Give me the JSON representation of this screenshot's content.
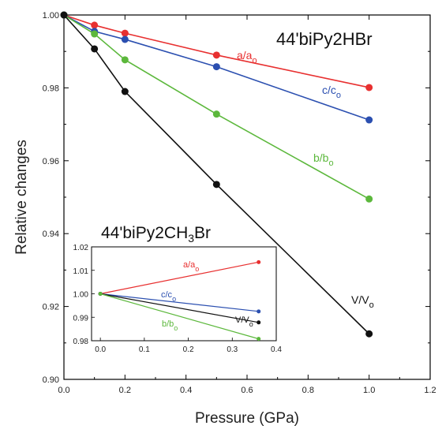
{
  "chart_data": [
    {
      "type": "line",
      "title": "44'biPy2HBr",
      "xlabel": "Pressure (GPa)",
      "ylabel": "Relative changes",
      "xlim": [
        0,
        1.2
      ],
      "ylim": [
        0.9,
        1.0
      ],
      "x_ticks": [
        "0.0",
        "0.2",
        "0.4",
        "0.6",
        "0.8",
        "1.0",
        "1.2"
      ],
      "y_ticks": [
        "0.90",
        "0.92",
        "0.94",
        "0.96",
        "0.98",
        "1.00"
      ],
      "grid": false,
      "series": [
        {
          "name": "a/a",
          "subscript": "o",
          "color": "#e83030",
          "x": [
            0,
            0.1,
            0.2,
            0.5,
            1.0
          ],
          "y": [
            1.0,
            0.9972,
            0.995,
            0.989,
            0.9801
          ]
        },
        {
          "name": "c/c",
          "subscript": "o",
          "color": "#2b4fb0",
          "x": [
            0,
            0.1,
            0.2,
            0.5,
            1.0
          ],
          "y": [
            1.0,
            0.9955,
            0.9933,
            0.9858,
            0.9712
          ]
        },
        {
          "name": "b/b",
          "subscript": "o",
          "color": "#5cb83c",
          "x": [
            0,
            0.1,
            0.2,
            0.5,
            1.0
          ],
          "y": [
            1.0,
            0.9948,
            0.9877,
            0.9728,
            0.9495
          ]
        },
        {
          "name": "V/V",
          "subscript": "o",
          "color": "#111111",
          "x": [
            0,
            0.1,
            0.2,
            0.5,
            1.0
          ],
          "y": [
            1.0,
            0.9907,
            0.979,
            0.9535,
            0.9125
          ]
        }
      ]
    },
    {
      "type": "line",
      "title_parts": [
        "44'biPy2CH",
        "3",
        "Br"
      ],
      "xlim": [
        -0.02,
        0.4
      ],
      "ylim": [
        0.98,
        1.02
      ],
      "x_ticks": [
        "0.0",
        "0.1",
        "0.2",
        "0.3",
        "0.4"
      ],
      "y_ticks": [
        "0.98",
        "0.99",
        "1.00",
        "1.01",
        "1.02"
      ],
      "series": [
        {
          "name": "a/a",
          "subscript": "o",
          "color": "#e83030",
          "x": [
            0,
            0.36
          ],
          "y": [
            1.0,
            1.0135
          ]
        },
        {
          "name": "c/c",
          "subscript": "o",
          "color": "#2b4fb0",
          "x": [
            0,
            0.36
          ],
          "y": [
            1.0,
            0.9925
          ]
        },
        {
          "name": "V/V",
          "subscript": "o",
          "color": "#111111",
          "x": [
            0,
            0.36
          ],
          "y": [
            1.0,
            0.9878
          ]
        },
        {
          "name": "b/b",
          "subscript": "o",
          "color": "#5cb83c",
          "x": [
            0,
            0.36
          ],
          "y": [
            1.0,
            0.9808
          ]
        }
      ]
    }
  ]
}
